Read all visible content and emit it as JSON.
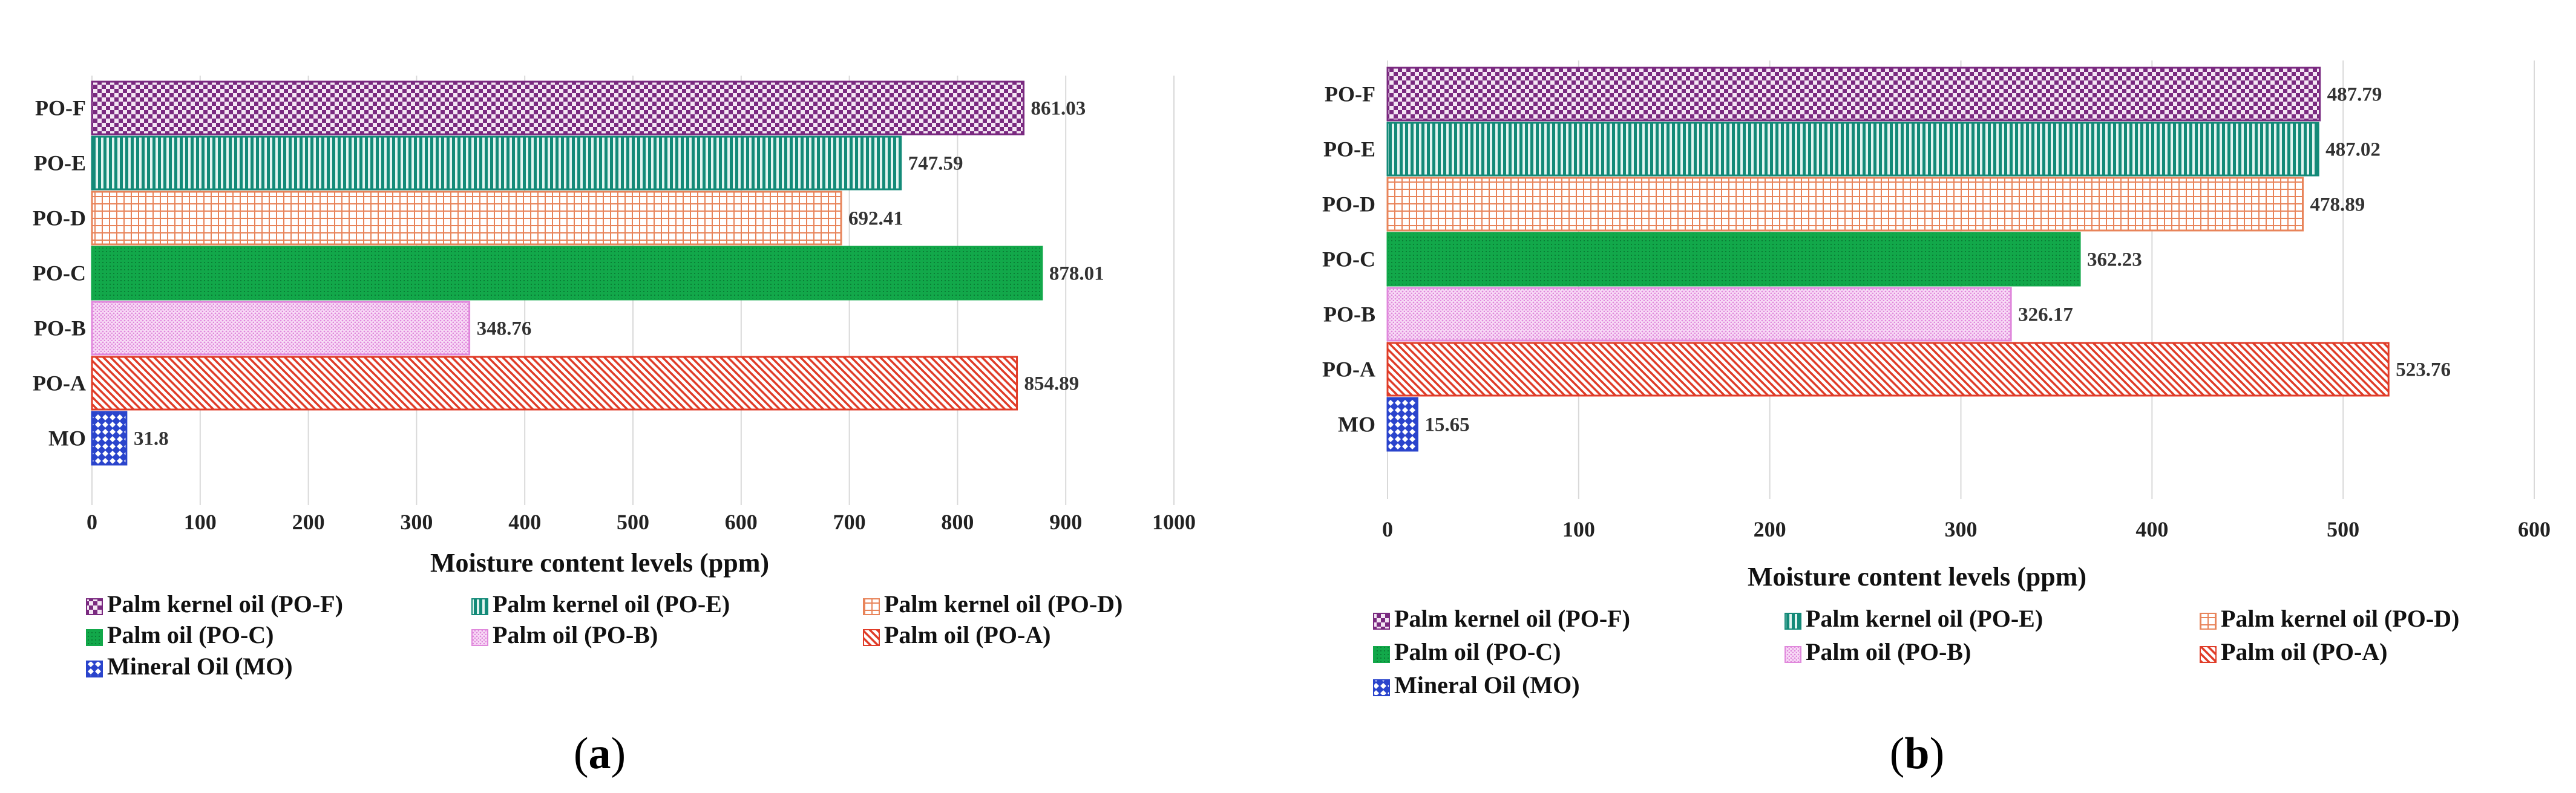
{
  "chart_data": [
    {
      "type": "bar",
      "orientation": "horizontal",
      "panel_label": "a",
      "categories": [
        "PO-F",
        "PO-E",
        "PO-D",
        "PO-C",
        "PO-B",
        "PO-A",
        "MO"
      ],
      "values": [
        861.03,
        747.59,
        692.41,
        878.01,
        348.76,
        854.89,
        31.8
      ],
      "value_labels": [
        "861.03",
        "747.59",
        "692.41",
        "878.01",
        "348.76",
        "854.89",
        "31.8"
      ],
      "xlabel": "Moisture content levels (ppm)",
      "xlim": [
        0,
        1000
      ],
      "xticks": [
        "0",
        "100",
        "200",
        "300",
        "400",
        "500",
        "600",
        "700",
        "800",
        "900",
        "1000"
      ],
      "grid": "vertical",
      "legend_position": "bottom"
    },
    {
      "type": "bar",
      "orientation": "horizontal",
      "panel_label": "b",
      "categories": [
        "PO-F",
        "PO-E",
        "PO-D",
        "PO-C",
        "PO-B",
        "PO-A",
        "MO"
      ],
      "values": [
        487.79,
        487.02,
        478.89,
        362.23,
        326.17,
        523.76,
        15.65
      ],
      "value_labels": [
        "487.79",
        "487.02",
        "478.89",
        "362.23",
        "326.17",
        "523.76",
        "15.65"
      ],
      "xlabel": "Moisture content levels (ppm)",
      "xlim": [
        0,
        600
      ],
      "xticks": [
        "0",
        "100",
        "200",
        "300",
        "400",
        "500",
        "600"
      ],
      "grid": "vertical",
      "legend_position": "bottom"
    }
  ],
  "legend": [
    {
      "label": "Palm kernel oil (PO-F)",
      "category": "PO-F",
      "color": "#7a2a80",
      "pattern": "checker"
    },
    {
      "label": "Palm kernel oil (PO-E)",
      "category": "PO-E",
      "color": "#138a78",
      "pattern": "vertical-lines"
    },
    {
      "label": "Palm kernel oil (PO-D)",
      "category": "PO-D",
      "color": "#e8845a",
      "pattern": "grid"
    },
    {
      "label": "Palm oil (PO-C)",
      "category": "PO-C",
      "color": "#12a84a",
      "pattern": "dots"
    },
    {
      "label": "Palm oil (PO-B)",
      "category": "PO-B",
      "color": "#e088dc",
      "pattern": "fine-dots"
    },
    {
      "label": "Palm oil (PO-A)",
      "category": "PO-A",
      "color": "#e03c28",
      "pattern": "diagonal"
    },
    {
      "label": "Mineral Oil (MO)",
      "category": "MO",
      "color": "#2a44cc",
      "pattern": "diamond"
    }
  ]
}
